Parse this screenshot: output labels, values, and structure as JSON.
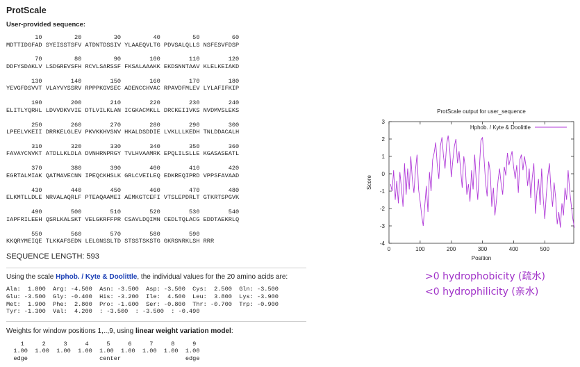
{
  "page": {
    "title": "ProtScale",
    "subtitle": "User-provided sequence:"
  },
  "sequence_block": {
    "rows": [
      {
        "pos": "        10         20         30         40         50         60",
        "seq": "MDTTIDGFAD SYEISSTSFV ATDNTDSSIV YLAAEQVLTG PDVSALQLLS NSFESVFDSP"
      },
      {
        "pos": "        70         80         90        100        110        120",
        "seq": "DDFYSDAKLV LSDGREVSFH RCVLSARSSF FKSALAAAKK EKDSNNTAAV KLELKEIAKD"
      },
      {
        "pos": "       130        140        150        160        170        180",
        "seq": "YEVGFDSVVT VLAYVYSSRV RPPPKGVSEC ADENCCHVAC RPAVDFMLEV LYLAFIFKIP"
      },
      {
        "pos": "       190        200        210        220        230        240",
        "seq": "ELITLYQRHL LDVVDKVVIE DTLVILKLAN ICGKACMKLL DRCKEIIVKS NVDMVSLEKS"
      },
      {
        "pos": "       250        260        270        280        290        300",
        "seq": "LPEELVKEII DRRKELGLEV PKVKKHVSNV HKALDSDDIE LVKLLLKEDH TNLDDACALH"
      },
      {
        "pos": "       310        320        330        340        350        360",
        "seq": "FAVAYCNVKT ATDLLKLDLA DVNHRNPRGY TVLHVAAMRK EPQLILSLLE KGASASEATL"
      },
      {
        "pos": "       370        380        390        400        410        420",
        "seq": "EGRTALMIAK QATMAVECNN IPEQCKHSLK GRLCVEILEQ EDKREQIPRD VPPSFAVAAD"
      },
      {
        "pos": "       430        440        450        460        470        480",
        "seq": "ELKMTLLDLE NRVALAQRLF PTEAQAAMEI AEMKGTCEFI VTSLEPDRLT GTKRTSPGVK"
      },
      {
        "pos": "       490        500        510        520        530        540",
        "seq": "IAPFRILEEH QSRLKALSKT VELGKRFFPR CSAVLDQIMN CEDLTQLACG EDDTAEKRLQ"
      },
      {
        "pos": "       550        560        570        580        590",
        "seq": "KKQRYMEIQE TLKKAFSEDN LELGNSSLTD STSSTSKSTG GKRSNRKLSH RRR"
      }
    ]
  },
  "sequence_length": "SEQUENCE LENGTH: 593",
  "scale_info": {
    "prefix": "Using the scale ",
    "link": "Hphob. / Kyte & Doolittle",
    "suffix": ", the individual values for the 20 amino acids are:"
  },
  "amino_acid_values": [
    "Ala:  1.800  Arg: -4.500  Asn: -3.500  Asp: -3.500  Cys:  2.500  Gln: -3.500",
    "Glu: -3.500  Gly: -0.400  His: -3.200  Ile:  4.500  Leu:  3.800  Lys: -3.900",
    "Met:  1.900  Phe:  2.800  Pro: -1.600  Ser: -0.800  Thr: -0.700  Trp: -0.900",
    "Tyr: -1.300  Val:  4.200  : -3.500  : -3.500  : -0.490"
  ],
  "weights_info": {
    "prefix": "Weights for window positions 1,..,9, using ",
    "bold": "linear weight variation model",
    "suffix": ":"
  },
  "weights_table": [
    "  1     2     3     4     5     6     7     8     9",
    "1.00  1.00  1.00  1.00  1.00  1.00  1.00  1.00  1.00",
    "edge                    center                  edge"
  ],
  "annotations": {
    "line1": ">0 hydrophobicity (疏水)",
    "line2": "<0 hydrophilicity (亲水)",
    "color": "#a032c8"
  },
  "chart_data": {
    "type": "line",
    "title": "ProtScale output for user_sequence",
    "xlabel": "Position",
    "ylabel": "Score",
    "xlim": [
      0,
      593
    ],
    "ylim": [
      -4,
      3
    ],
    "xticks": [
      0,
      100,
      200,
      300,
      400,
      500
    ],
    "yticks": [
      -4,
      -3,
      -2,
      -1,
      0,
      1,
      2,
      3
    ],
    "legend": "top-right",
    "series": [
      {
        "name": "Hphob. / Kyte & Doolittle",
        "color": "#b03ad8",
        "x_start": 5,
        "x_step": 5,
        "values": [
          -0.6,
          -1.0,
          0.2,
          -1.5,
          -0.4,
          -1.7,
          0.1,
          -0.8,
          -1.9,
          0.6,
          -1.2,
          0.3,
          -0.9,
          1.0,
          -0.3,
          -1.1,
          0.2,
          1.1,
          -0.9,
          -1.6,
          -2.4,
          -3.0,
          -1.8,
          -0.7,
          -2.2,
          0.1,
          -1.0,
          0.8,
          1.2,
          1.8,
          0.5,
          -0.3,
          1.6,
          2.1,
          1.0,
          0.3,
          1.7,
          2.2,
          1.4,
          -0.2,
          0.8,
          1.6,
          2.0,
          0.6,
          1.3,
          0.2,
          -0.8,
          1.0,
          0.4,
          -1.2,
          -0.6,
          -1.6,
          0.2,
          -0.9,
          1.1,
          -0.4,
          -1.5,
          0.3,
          1.9,
          2.1,
          0.9,
          -0.5,
          -1.3,
          0.7,
          0.1,
          -1.9,
          -0.8,
          -2.4,
          -1.5,
          -0.4,
          0.3,
          -0.6,
          -1.2,
          0.4,
          -0.1,
          1.2,
          0.5,
          0.9,
          1.3,
          0.4,
          -0.3,
          0.5,
          -1.1,
          0.8,
          1.1,
          0.2,
          1.0,
          0.4,
          -0.7,
          0.3,
          -1.4,
          -0.2,
          0.6,
          -2.3,
          -1.0,
          -0.3,
          -1.8,
          0.3,
          -1.4,
          -2.6,
          -1.2,
          -0.1,
          0.6,
          -1.0,
          -1.9,
          -0.5,
          -1.4,
          -2.9,
          -2.2,
          -3.1,
          -1.7,
          -2.4,
          -0.8,
          -1.5,
          0.2,
          -1.0,
          -1.8,
          -2.6,
          -3.1
        ]
      }
    ]
  }
}
